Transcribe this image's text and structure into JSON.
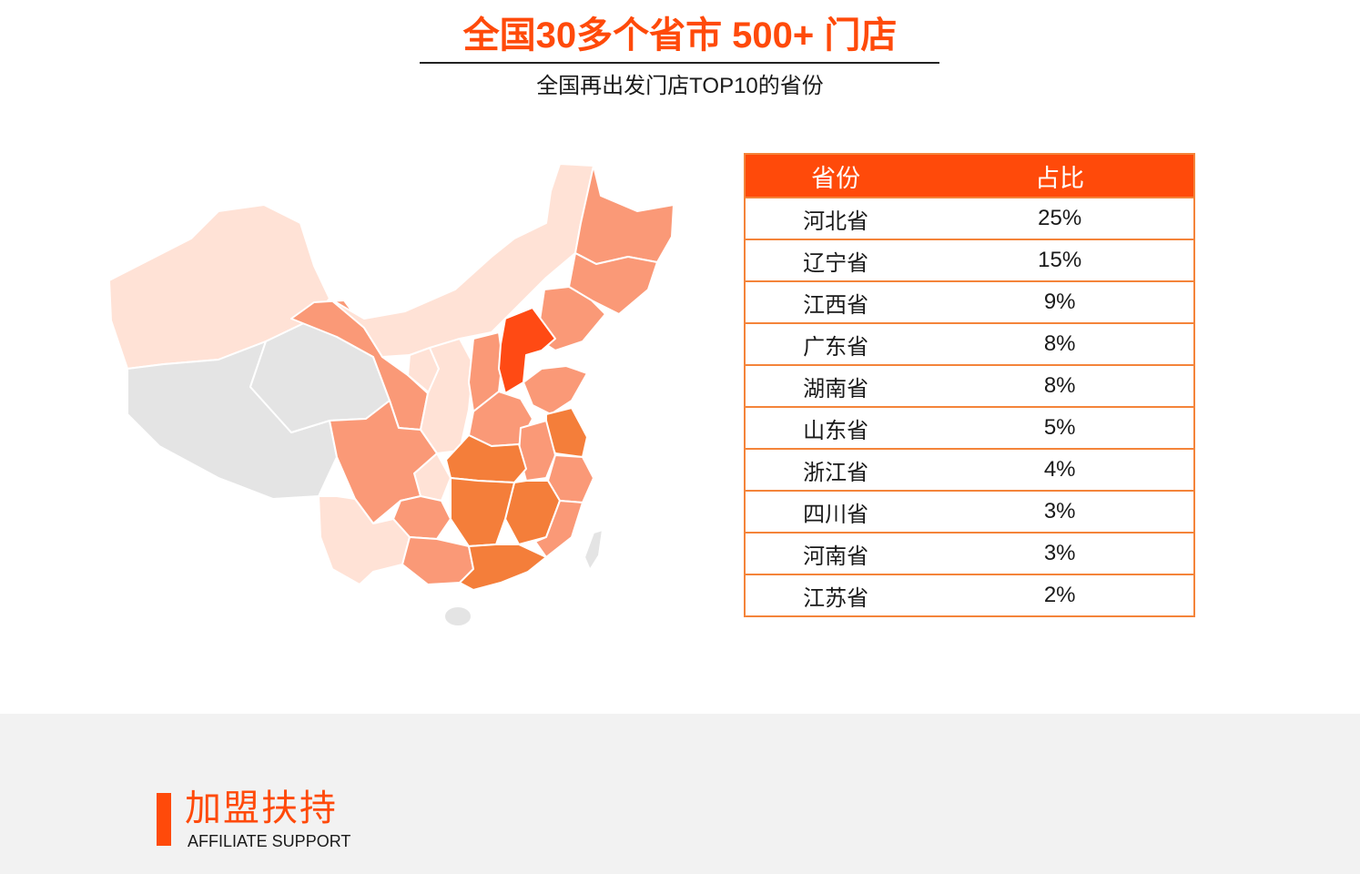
{
  "header": {
    "title": "全国30多个省市 500+ 门店",
    "subtitle": "全国再出发门店TOP10的省份"
  },
  "table": {
    "headers": [
      "省份",
      "占比"
    ],
    "rows": [
      {
        "province": "河北省",
        "share": "25%"
      },
      {
        "province": "辽宁省",
        "share": "15%"
      },
      {
        "province": "江西省",
        "share": "9%"
      },
      {
        "province": "广东省",
        "share": "8%"
      },
      {
        "province": "湖南省",
        "share": "8%"
      },
      {
        "province": "山东省",
        "share": "5%"
      },
      {
        "province": "浙江省",
        "share": "4%"
      },
      {
        "province": "四川省",
        "share": "3%"
      },
      {
        "province": "河南省",
        "share": "3%"
      },
      {
        "province": "江苏省",
        "share": "2%"
      }
    ]
  },
  "map_colors": {
    "top": "#ff4a14",
    "high": "#f47e3a",
    "mid": "#fa9977",
    "low": "#ffe2d6",
    "none": "#e4e4e4"
  },
  "support": {
    "title": "加盟扶持",
    "subtitle": "AFFILIATE SUPPORT"
  }
}
